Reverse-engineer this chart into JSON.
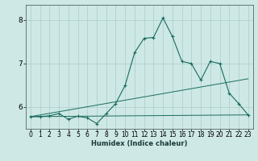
{
  "title": "",
  "xlabel": "Humidex (Indice chaleur)",
  "ylabel": "",
  "xlim": [
    -0.5,
    23.5
  ],
  "ylim": [
    5.5,
    8.35
  ],
  "background_color": "#cde8e5",
  "grid_color": "#aacccc",
  "line_color": "#1a6b5f",
  "xticks": [
    0,
    1,
    2,
    3,
    4,
    5,
    6,
    7,
    8,
    9,
    10,
    11,
    12,
    13,
    14,
    15,
    16,
    17,
    18,
    19,
    20,
    21,
    22,
    23
  ],
  "yticks": [
    6,
    7,
    8
  ],
  "series_main": {
    "x": [
      0,
      1,
      2,
      3,
      4,
      5,
      6,
      7,
      8,
      9,
      10,
      11,
      12,
      13,
      14,
      15,
      16,
      17,
      18,
      19,
      20,
      21,
      22,
      23
    ],
    "y": [
      5.78,
      5.78,
      5.8,
      5.85,
      5.72,
      5.79,
      5.75,
      5.62,
      5.85,
      6.08,
      6.5,
      7.25,
      7.58,
      7.6,
      8.05,
      7.62,
      7.05,
      7.0,
      6.62,
      7.05,
      7.0,
      6.32,
      6.08,
      5.82
    ]
  },
  "series_flat": {
    "x": [
      0,
      23
    ],
    "y": [
      5.78,
      5.82
    ]
  },
  "series_trend": {
    "x": [
      0,
      23
    ],
    "y": [
      5.78,
      6.65
    ]
  },
  "xlabel_fontsize": 6.0,
  "tick_fontsize": 5.5,
  "ytick_fontsize": 6.5
}
